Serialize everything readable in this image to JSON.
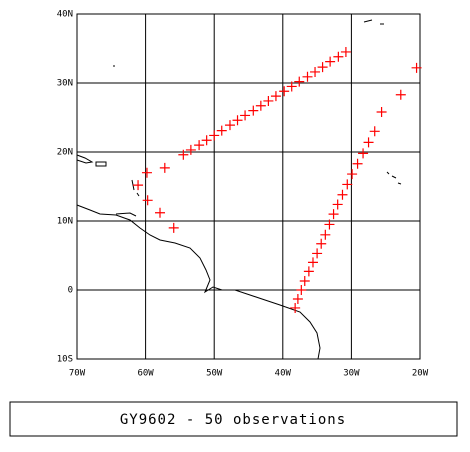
{
  "chart_data": {
    "type": "scatter",
    "title": "GY9602 - 50 observations",
    "color": "#ff0000",
    "grid": true,
    "xlim": [
      -70,
      -20
    ],
    "ylim": [
      -10,
      40
    ],
    "xticks": [
      {
        "value": -70,
        "label": "70W"
      },
      {
        "value": -60,
        "label": "60W"
      },
      {
        "value": -50,
        "label": "50W"
      },
      {
        "value": -40,
        "label": "40W"
      },
      {
        "value": -30,
        "label": "30W"
      },
      {
        "value": -20,
        "label": "20W"
      }
    ],
    "yticks": [
      {
        "value": -10,
        "label": "10S"
      },
      0,
      {
        "value": 10,
        "label": "10N"
      },
      {
        "value": 20,
        "label": "20N"
      },
      {
        "value": 30,
        "label": "30N"
      },
      {
        "value": 40,
        "label": "40N"
      }
    ],
    "x": [
      -61.1,
      -59.8,
      -57.2,
      -59.7,
      -57.9,
      -55.9,
      -54.5,
      -53.4,
      -52.2,
      -51.1,
      -50.0,
      -48.9,
      -47.7,
      -46.6,
      -45.5,
      -44.3,
      -43.2,
      -42.1,
      -41.0,
      -39.8,
      -38.7,
      -37.6,
      -36.4,
      -35.3,
      -34.2,
      -33.1,
      -31.9,
      -30.8,
      -38.2,
      -37.8,
      -37.3,
      -36.8,
      -36.2,
      -35.6,
      -35.0,
      -34.4,
      -33.8,
      -33.2,
      -32.6,
      -32.0,
      -31.3,
      -30.6,
      -29.9,
      -29.1,
      -28.3,
      -27.5,
      -26.6,
      -25.6,
      -22.8,
      -20.5
    ],
    "values": [
      15.2,
      17.0,
      17.7,
      13.0,
      11.2,
      9.0,
      19.6,
      20.3,
      21.0,
      21.7,
      22.4,
      23.1,
      23.9,
      24.6,
      25.3,
      26.0,
      26.7,
      27.4,
      28.1,
      28.8,
      29.5,
      30.2,
      30.9,
      31.6,
      32.3,
      33.1,
      33.8,
      34.5,
      -2.6,
      -1.3,
      0,
      1.3,
      2.7,
      4.0,
      5.3,
      6.7,
      8.0,
      9.5,
      11.0,
      12.4,
      13.8,
      15.3,
      16.8,
      18.3,
      19.8,
      21.4,
      23.0,
      25.8,
      28.3,
      32.2
    ]
  }
}
